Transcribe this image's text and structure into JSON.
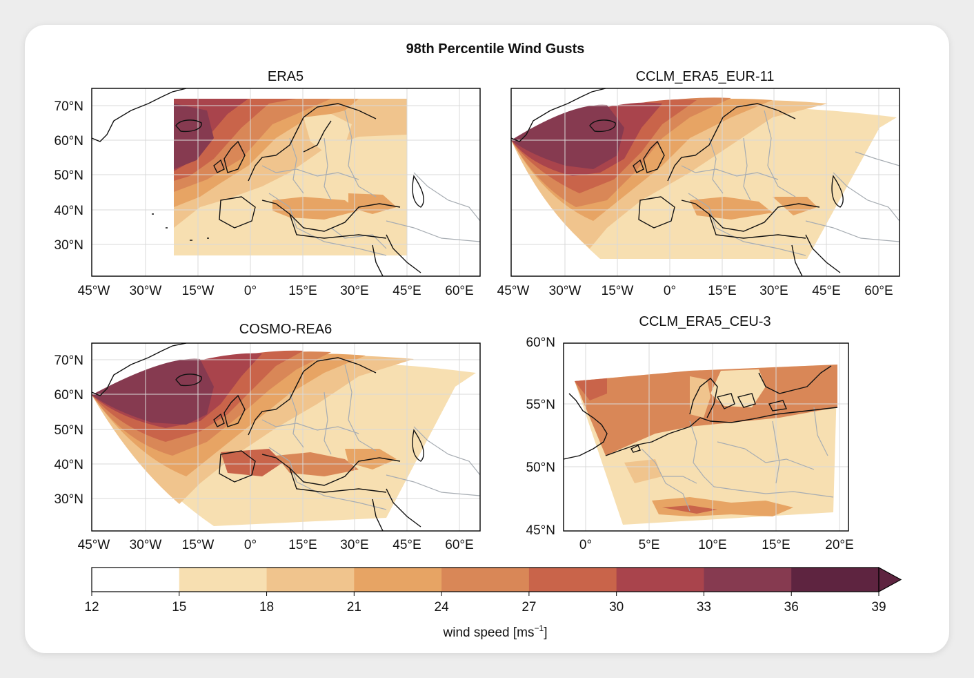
{
  "figure": {
    "title": "98th Percentile Wind Gusts",
    "panels": [
      {
        "title": "ERA5",
        "x_ticks": [
          "45°W",
          "30°W",
          "15°W",
          "0°",
          "15°E",
          "30°E",
          "45°E",
          "60°E"
        ],
        "y_ticks": [
          "70°N",
          "60°N",
          "50°N",
          "40°N",
          "30°N"
        ]
      },
      {
        "title": "CCLM_ERA5_EUR-11",
        "x_ticks": [
          "45°W",
          "30°W",
          "15°W",
          "0°",
          "15°E",
          "30°E",
          "45°E",
          "60°E"
        ],
        "y_ticks": [
          "70°N",
          "60°N",
          "50°N",
          "40°N",
          "30°N"
        ]
      },
      {
        "title": "COSMO-REA6",
        "x_ticks": [
          "45°W",
          "30°W",
          "15°W",
          "0°",
          "15°E",
          "30°E",
          "45°E",
          "60°E"
        ],
        "y_ticks": [
          "70°N",
          "60°N",
          "50°N",
          "40°N",
          "30°N"
        ]
      },
      {
        "title": "CCLM_ERA5_CEU-3",
        "x_ticks": [
          "0°",
          "5°E",
          "10°E",
          "15°E",
          "20°E"
        ],
        "y_ticks": [
          "60°N",
          "55°N",
          "50°N",
          "45°N"
        ]
      }
    ]
  },
  "colorbar": {
    "label": "wind speed [ms",
    "label_sup": "−1",
    "label_end": "]",
    "ticks": [
      "12",
      "15",
      "18",
      "21",
      "24",
      "27",
      "30",
      "33",
      "36",
      "39"
    ],
    "colors": [
      "#ffffff",
      "#f7dfb1",
      "#f0c48d",
      "#e7a464",
      "#d98757",
      "#c9644a",
      "#a9444c",
      "#863a50",
      "#5e2440"
    ],
    "extend": "max"
  }
}
